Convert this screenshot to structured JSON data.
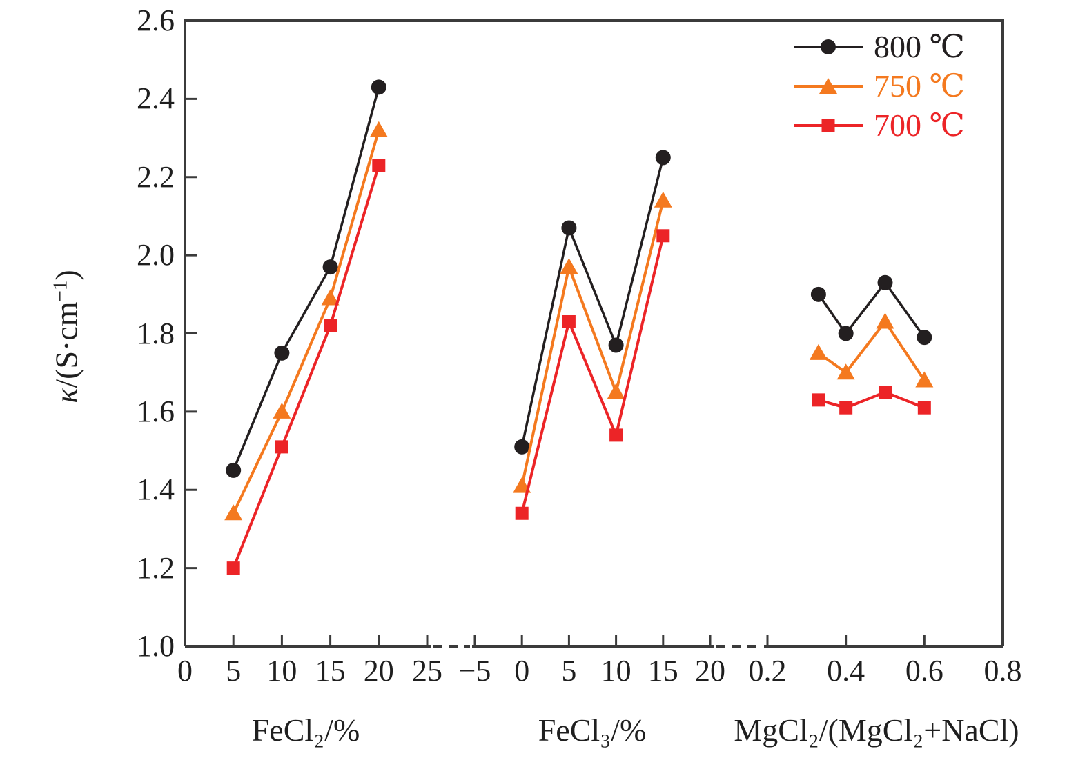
{
  "chart_data": {
    "type": "line",
    "title": "",
    "ylabel": "κ/(S·cm⁻¹)",
    "ylabel_parts": {
      "kappa": "κ",
      "mid": "/(S·cm",
      "sup": "−1",
      "post": ")"
    },
    "ylim": [
      1.0,
      2.6
    ],
    "ytick_values": [
      2.6,
      2.4,
      2.2,
      2.0,
      1.8,
      1.6,
      1.4,
      1.2,
      1.0
    ],
    "yticks": [
      "2.6",
      "2.4",
      "2.2",
      "2.0",
      "1.8",
      "1.6",
      "1.4",
      "1.2",
      "1.0"
    ],
    "grid": false,
    "legend_position": "top-right-inside",
    "axis_breaks": 2,
    "frame_color": "#3b3b3b",
    "series_meta": [
      {
        "name": "800 ℃",
        "color": "#231f20",
        "marker": "circle"
      },
      {
        "name": "750 ℃",
        "color": "#f4791f",
        "marker": "triangle"
      },
      {
        "name": "700 ℃",
        "color": "#ec2427",
        "marker": "square"
      }
    ],
    "panels": [
      {
        "xlabel": "FeCl₂/%",
        "xlim": [
          0,
          25
        ],
        "xtick_values": [
          0,
          5,
          10,
          15,
          20,
          25
        ],
        "xtick_labels": [
          "0",
          "5",
          "10",
          "15",
          "20",
          "25"
        ],
        "x": [
          5,
          10,
          15,
          20
        ],
        "series": [
          {
            "name": "800 ℃",
            "values": [
              1.45,
              1.75,
              1.97,
              2.43
            ]
          },
          {
            "name": "750 ℃",
            "values": [
              1.34,
              1.6,
              1.89,
              2.32
            ]
          },
          {
            "name": "700 ℃",
            "values": [
              1.2,
              1.51,
              1.82,
              2.23
            ]
          }
        ]
      },
      {
        "xlabel": "FeCl₃/%",
        "xlim": [
          -5,
          20
        ],
        "xtick_values": [
          -5,
          0,
          5,
          10,
          15,
          20
        ],
        "xtick_labels": [
          "−5",
          "0",
          "5",
          "10",
          "15",
          "20"
        ],
        "x": [
          0,
          5,
          10,
          15
        ],
        "series": [
          {
            "name": "800 ℃",
            "values": [
              1.51,
              2.07,
              1.77,
              2.25
            ]
          },
          {
            "name": "750 ℃",
            "values": [
              1.41,
              1.97,
              1.65,
              2.14
            ]
          },
          {
            "name": "700 ℃",
            "values": [
              1.34,
              1.83,
              1.54,
              2.05
            ]
          }
        ]
      },
      {
        "xlabel": "MgCl₂/(MgCl₂+NaCl)",
        "xlim": [
          0.2,
          0.8
        ],
        "xtick_values": [
          0.2,
          0.4,
          0.6,
          0.8
        ],
        "xtick_labels": [
          "0.2",
          "0.4",
          "0.6",
          "0.8"
        ],
        "x": [
          0.33,
          0.4,
          0.5,
          0.6
        ],
        "series": [
          {
            "name": "800 ℃",
            "values": [
              1.9,
              1.8,
              1.93,
              1.79
            ]
          },
          {
            "name": "750 ℃",
            "values": [
              1.75,
              1.7,
              1.83,
              1.68
            ]
          },
          {
            "name": "700 ℃",
            "values": [
              1.63,
              1.61,
              1.65,
              1.61
            ]
          }
        ]
      }
    ]
  }
}
